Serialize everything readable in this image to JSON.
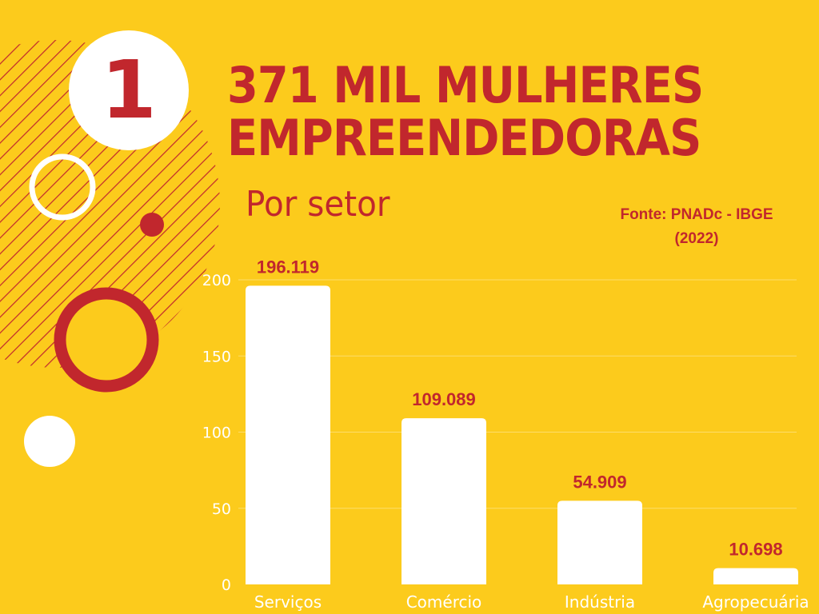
{
  "badge": {
    "number": "1"
  },
  "title": {
    "line1": "371 MIL MULHERES",
    "line2": "EMPREENDEDORAS"
  },
  "subtitle": "Por setor",
  "source": {
    "line1": "Fonte: PNADc - IBGE",
    "line2": "(2022)"
  },
  "colors": {
    "background": "#FCCB1C",
    "accent": "#C1272D",
    "bars": "#FFFFFF",
    "axis_text": "#FFFFFF",
    "data_label": "#C1272D"
  },
  "chart_data": {
    "type": "bar",
    "categories": [
      "Serviços",
      "Comércio",
      "Indústria",
      "Agropecuária"
    ],
    "values": [
      196.119,
      109.089,
      54.909,
      10.698
    ],
    "value_labels": [
      "196.119",
      "109.089",
      "54.909",
      "10.698"
    ],
    "yticks": [
      0,
      50,
      100,
      150,
      200
    ],
    "ylim": [
      0,
      200
    ],
    "grid": true,
    "legend": "none"
  }
}
